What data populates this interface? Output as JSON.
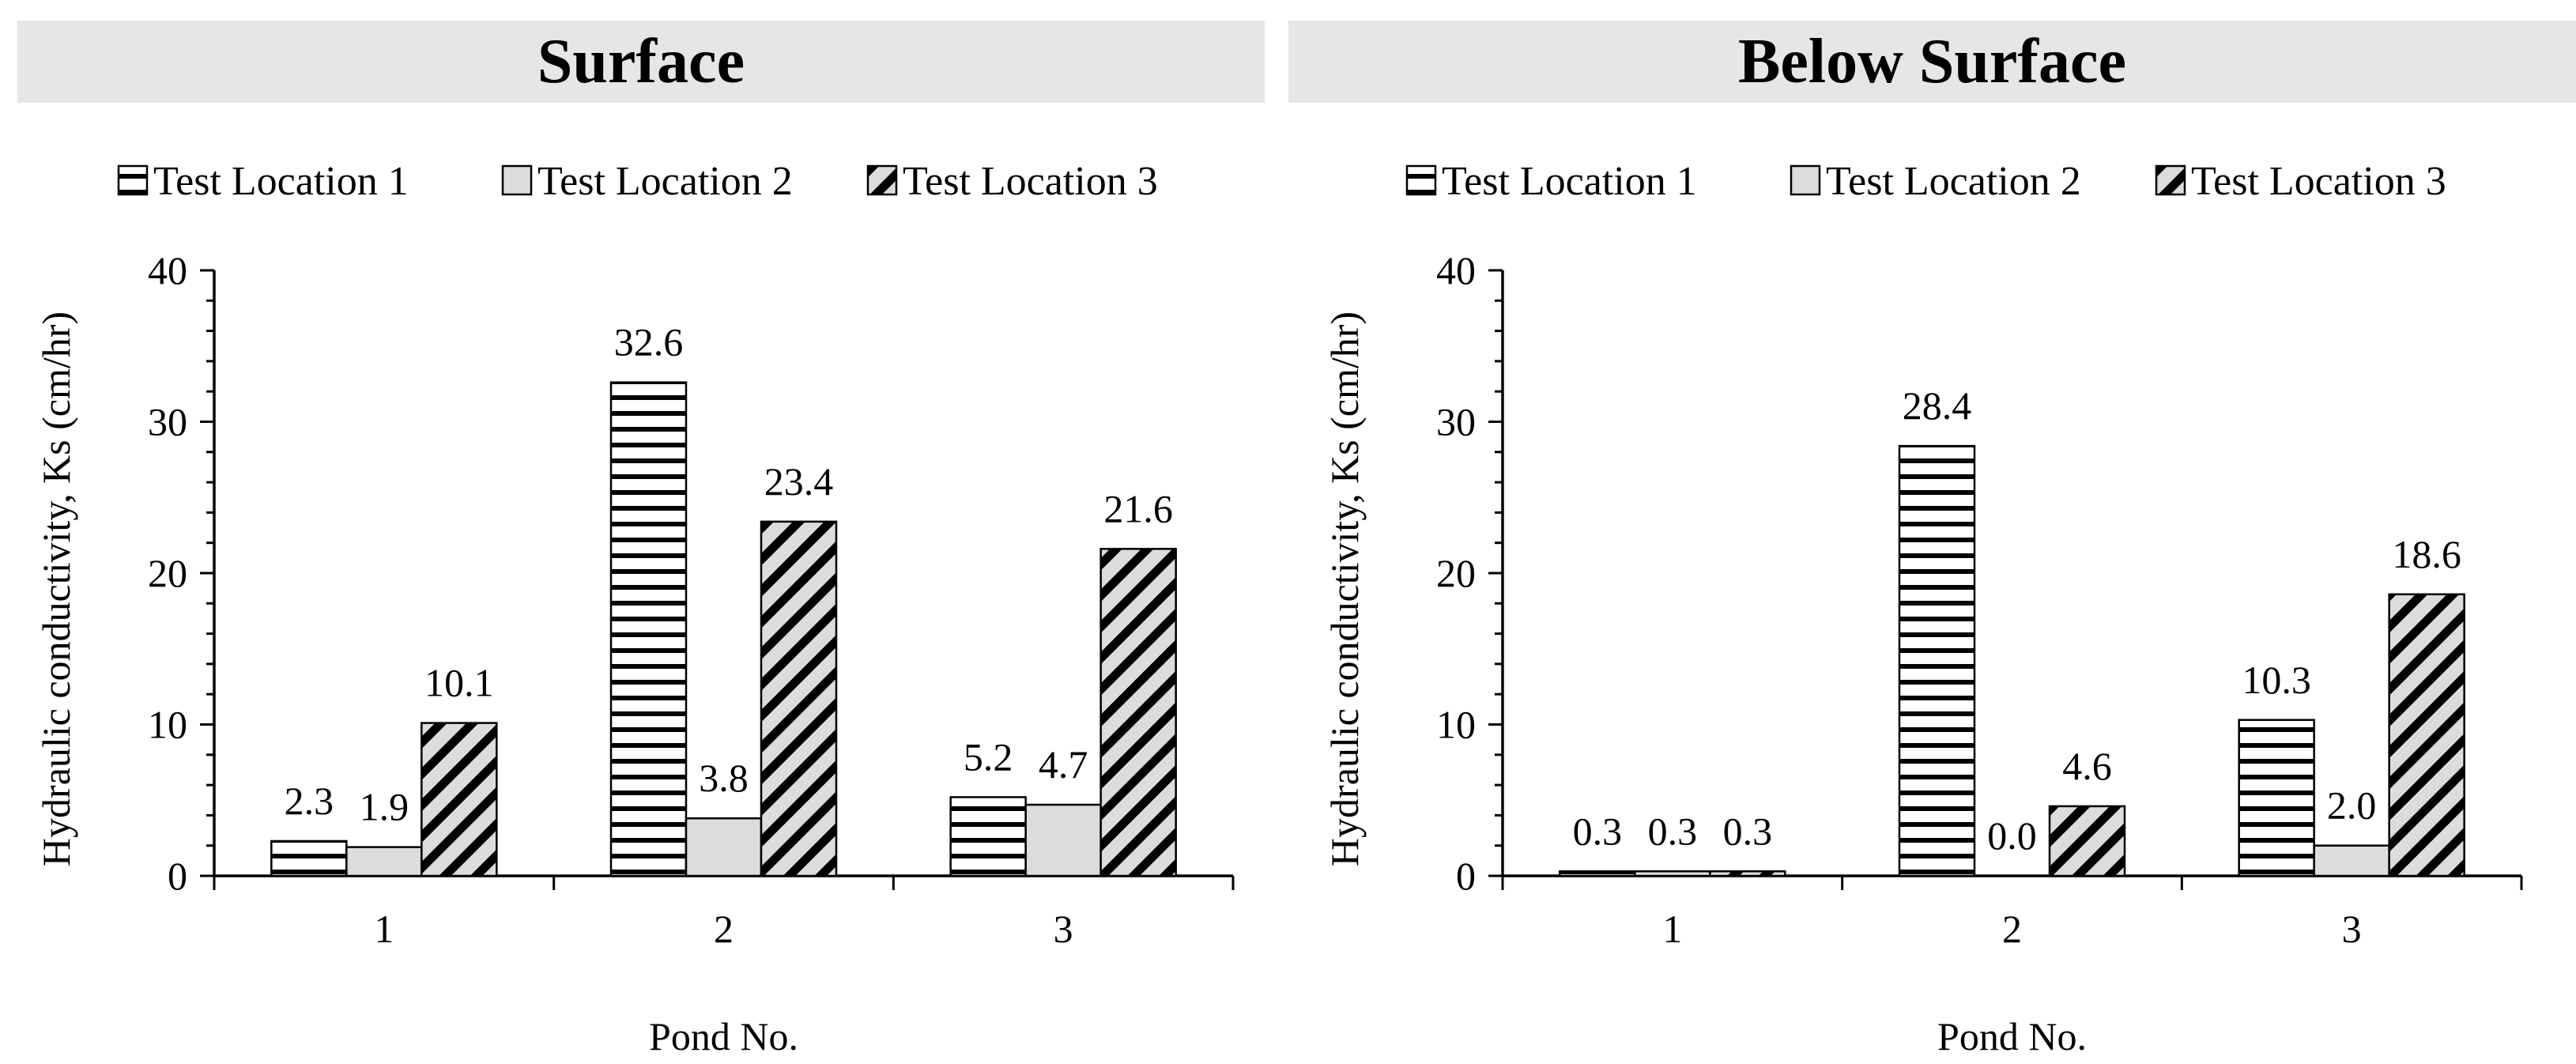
{
  "chart_data": [
    {
      "type": "bar",
      "title": "Surface",
      "xlabel": "Pond No.",
      "ylabel": "Hydraulic conductivity, Ks (cm/hr)",
      "ylim": [
        0,
        40
      ],
      "yticks": [
        0,
        10,
        20,
        30,
        40
      ],
      "categories": [
        "1",
        "2",
        "3"
      ],
      "legend_position": "top",
      "series": [
        {
          "name": "Test Location 1",
          "values": [
            2.3,
            32.6,
            5.2
          ],
          "labels": [
            "2.3",
            "32.6",
            "5.2"
          ],
          "pattern": "horizontal-lines"
        },
        {
          "name": "Test Location 2",
          "values": [
            1.9,
            3.8,
            4.7
          ],
          "labels": [
            "1.9",
            "3.8",
            "4.7"
          ],
          "pattern": "light-gray"
        },
        {
          "name": "Test Location 3",
          "values": [
            10.1,
            23.4,
            21.6
          ],
          "labels": [
            "10.1",
            "23.4",
            "21.6"
          ],
          "pattern": "diagonal-stripes"
        }
      ]
    },
    {
      "type": "bar",
      "title": "Below Surface",
      "xlabel": "Pond No.",
      "ylabel": "Hydraulic conductivity, Ks (cm/hr)",
      "ylim": [
        0,
        40
      ],
      "yticks": [
        0,
        10,
        20,
        30,
        40
      ],
      "categories": [
        "1",
        "2",
        "3"
      ],
      "legend_position": "top",
      "series": [
        {
          "name": "Test Location 1",
          "values": [
            0.3,
            28.4,
            10.3
          ],
          "labels": [
            "0.3",
            "28.4",
            "10.3"
          ],
          "pattern": "horizontal-lines"
        },
        {
          "name": "Test Location 2",
          "values": [
            0.3,
            0.0,
            2.0
          ],
          "labels": [
            "0.3",
            "0.0",
            "2.0"
          ],
          "pattern": "light-gray"
        },
        {
          "name": "Test Location 3",
          "values": [
            0.3,
            4.6,
            18.6
          ],
          "labels": [
            "0.3",
            "4.6",
            "18.6"
          ],
          "pattern": "diagonal-stripes"
        }
      ]
    }
  ],
  "colors": {
    "title_bar": "#e6e6e6",
    "gray_fill": "#dcdcdc",
    "stroke": "#000000"
  }
}
